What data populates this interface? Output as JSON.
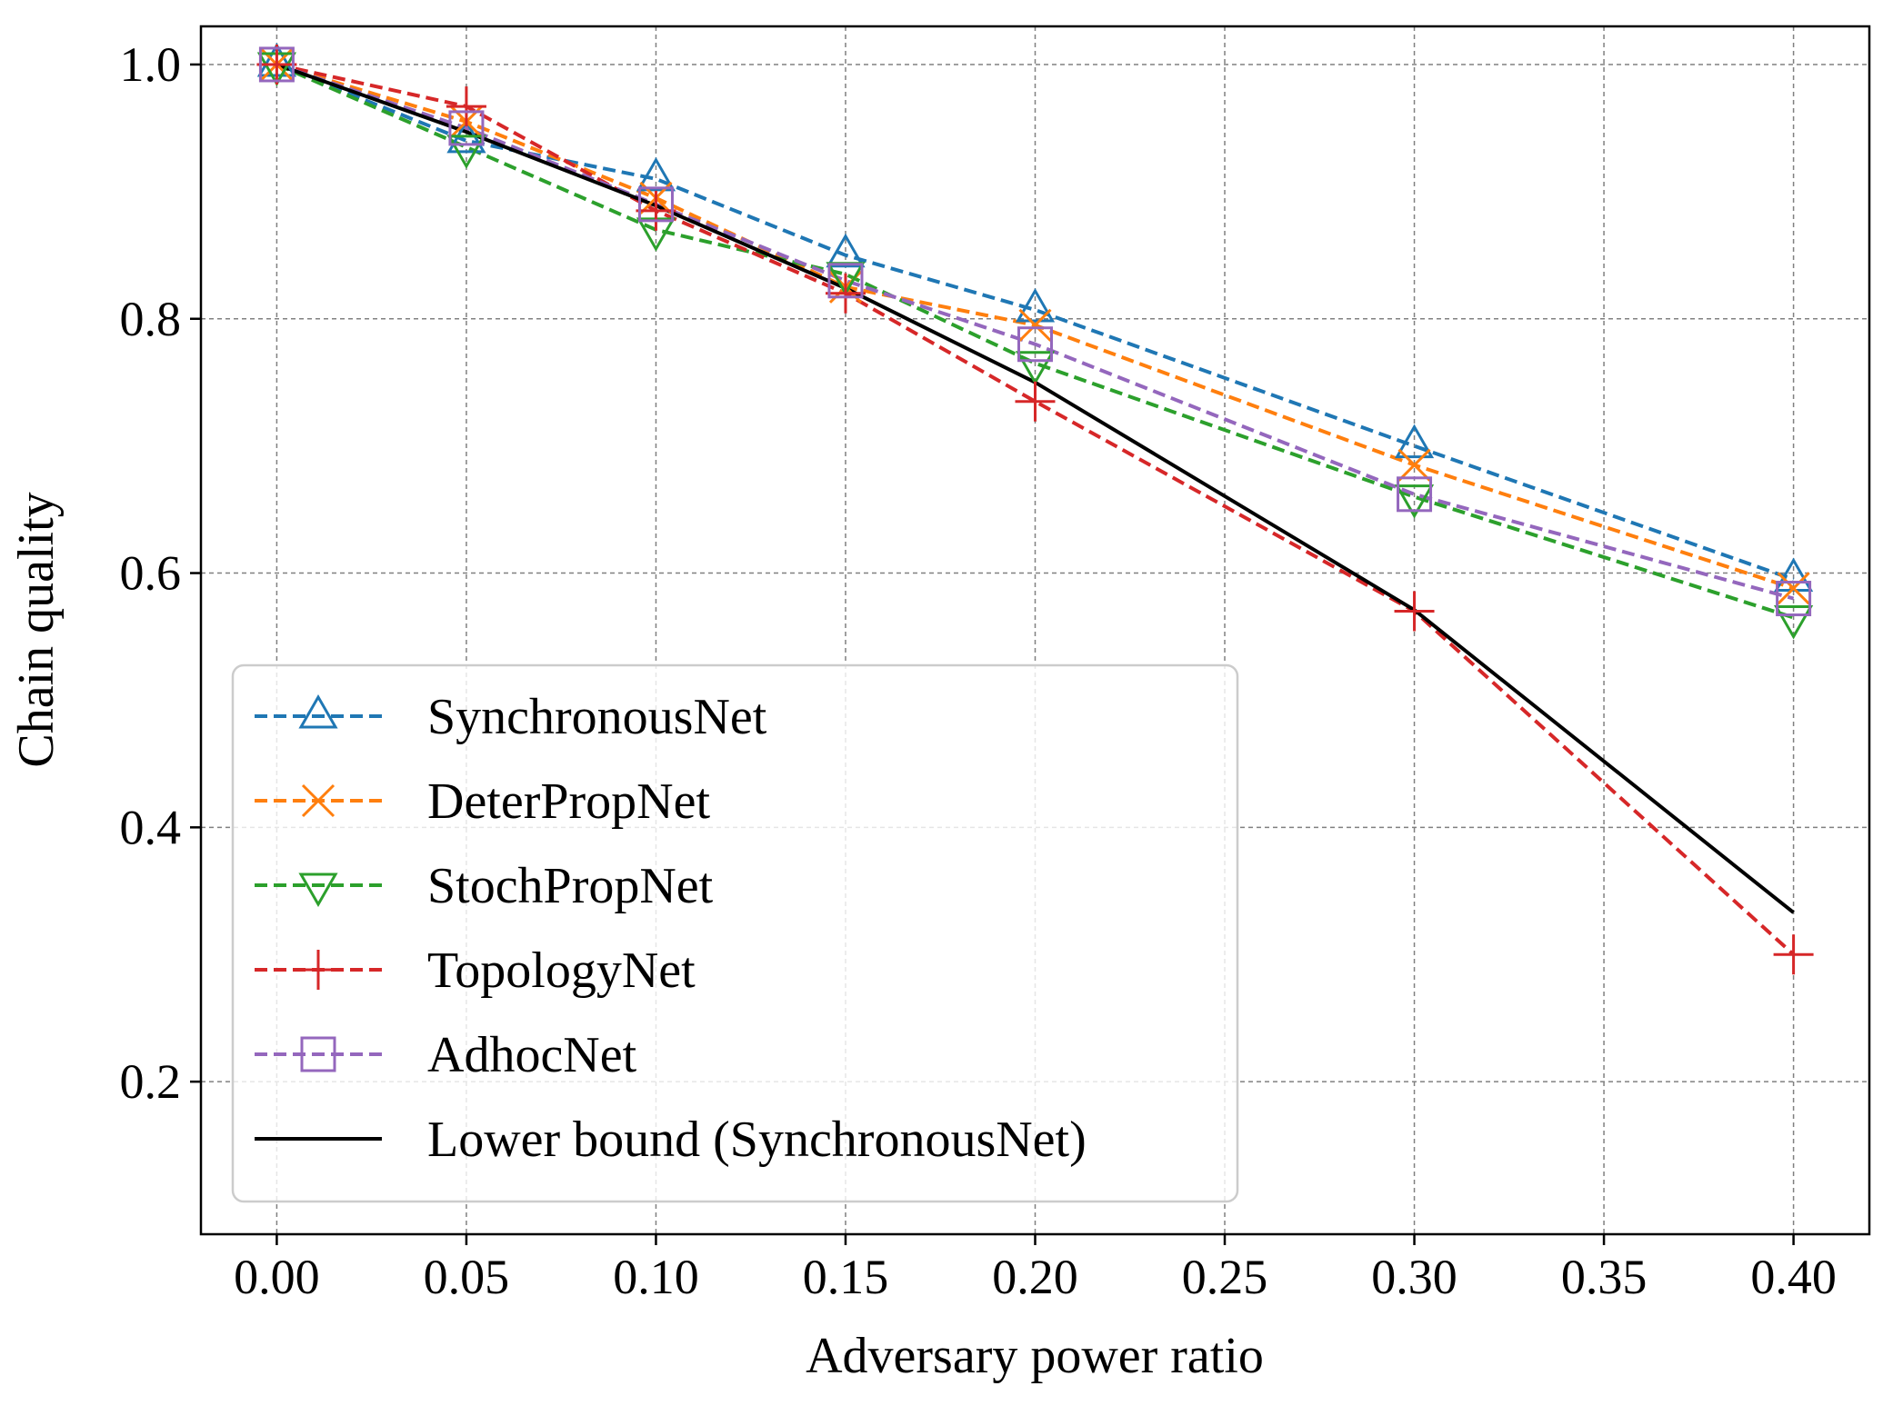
{
  "chart_data": {
    "type": "line",
    "xlabel": "Adversary power ratio",
    "ylabel": "Chain quality",
    "xlim": [
      -0.02,
      0.42
    ],
    "ylim": [
      0.08,
      1.03
    ],
    "xticks": [
      0.0,
      0.05,
      0.1,
      0.15,
      0.2,
      0.25,
      0.3,
      0.35,
      0.4
    ],
    "xtick_labels": [
      "0.00",
      "0.05",
      "0.10",
      "0.15",
      "0.20",
      "0.25",
      "0.30",
      "0.35",
      "0.40"
    ],
    "yticks": [
      0.2,
      0.4,
      0.6,
      0.8,
      1.0
    ],
    "ytick_labels": [
      "0.2",
      "0.4",
      "0.6",
      "0.8",
      "1.0"
    ],
    "grid": true,
    "legend_position": "lower-left",
    "x": [
      0.0,
      0.05,
      0.1,
      0.15,
      0.2,
      0.3,
      0.4
    ],
    "series": [
      {
        "name": "SynchronousNet",
        "color": "#1f77b4",
        "marker": "triangle-up",
        "dash": true,
        "values": [
          1.0,
          0.94,
          0.91,
          0.85,
          0.807,
          0.7,
          0.595
        ]
      },
      {
        "name": "DeterPropNet",
        "color": "#ff7f0e",
        "marker": "x",
        "dash": true,
        "values": [
          1.0,
          0.955,
          0.895,
          0.825,
          0.795,
          0.685,
          0.588
        ]
      },
      {
        "name": "StochPropNet",
        "color": "#2ca02c",
        "marker": "triangle-down",
        "dash": true,
        "values": [
          1.0,
          0.935,
          0.87,
          0.835,
          0.765,
          0.66,
          0.565
        ]
      },
      {
        "name": "TopologyNet",
        "color": "#d62728",
        "marker": "plus",
        "dash": true,
        "values": [
          1.0,
          0.967,
          0.885,
          0.82,
          0.735,
          0.57,
          0.3
        ]
      },
      {
        "name": "AdhocNet",
        "color": "#9467bd",
        "marker": "square",
        "dash": true,
        "values": [
          1.0,
          0.95,
          0.89,
          0.83,
          0.78,
          0.662,
          0.58
        ]
      },
      {
        "name": "Lower bound (SynchronousNet)",
        "color": "#000000",
        "marker": "none",
        "dash": false,
        "values": [
          1.0,
          0.947,
          0.889,
          0.824,
          0.75,
          0.571,
          0.333
        ]
      }
    ]
  }
}
